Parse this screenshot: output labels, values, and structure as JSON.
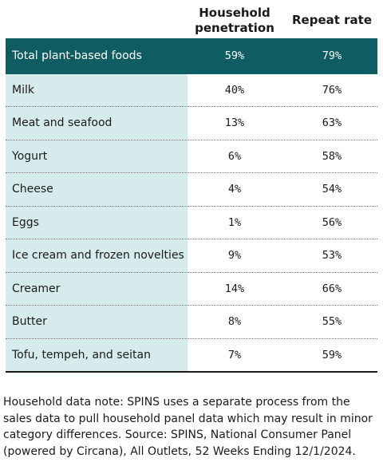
{
  "colors": {
    "header_bg": "#0f5d62",
    "label_column_bg": "#d6ecec",
    "header_text": "#ffffff"
  },
  "chart_data": {
    "type": "table",
    "columns": [
      "Household penetration",
      "Repeat rate"
    ],
    "total": {
      "label": "Total plant-based foods",
      "household_penetration": "59%",
      "repeat_rate": "79%"
    },
    "rows": [
      {
        "label": "Milk",
        "household_penetration": "40%",
        "repeat_rate": "76%"
      },
      {
        "label": "Meat and seafood",
        "household_penetration": "13%",
        "repeat_rate": "63%"
      },
      {
        "label": "Yogurt",
        "household_penetration": "6%",
        "repeat_rate": "58%"
      },
      {
        "label": "Cheese",
        "household_penetration": "4%",
        "repeat_rate": "54%"
      },
      {
        "label": "Eggs",
        "household_penetration": "1%",
        "repeat_rate": "56%"
      },
      {
        "label": "Ice cream and frozen novelties",
        "household_penetration": "9%",
        "repeat_rate": "53%"
      },
      {
        "label": "Creamer",
        "household_penetration": "14%",
        "repeat_rate": "66%"
      },
      {
        "label": "Butter",
        "household_penetration": "8%",
        "repeat_rate": "55%"
      },
      {
        "label": "Tofu, tempeh, and seitan",
        "household_penetration": "7%",
        "repeat_rate": "59%"
      }
    ]
  },
  "header": {
    "col1_line1": "Household",
    "col1_line2": "penetration",
    "col2": "Repeat rate"
  },
  "note": "Household data note: SPINS uses a separate process from the sales data to pull household panel data which may result in minor category differences. Source: SPINS, National Consumer Panel (powered by Circana), All Outlets, 52 Weeks Ending 12/1/2024."
}
